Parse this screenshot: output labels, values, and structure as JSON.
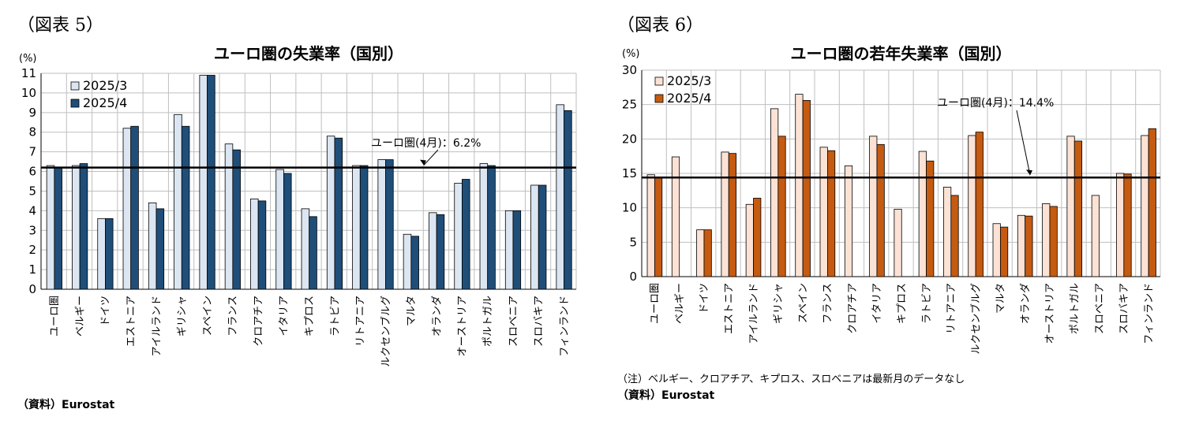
{
  "left": {
    "fig_label": "（図表 5）",
    "source": "（資料）Eurostat",
    "chart_data": {
      "type": "bar",
      "title": "ユーロ圏の失業率（国別）",
      "unit": "(%)",
      "ylim": [
        0,
        11
      ],
      "yticks": [
        "0",
        "1",
        "2",
        "3",
        "4",
        "5",
        "6",
        "7",
        "8",
        "9",
        "10",
        "11"
      ],
      "grid": true,
      "legend_position": "top-left",
      "categories": [
        "ユーロ圏",
        "ベルギー",
        "ドイツ",
        "エストニア",
        "アイルランド",
        "ギリシャ",
        "スペイン",
        "フランス",
        "クロアチア",
        "イタリア",
        "キプロス",
        "ラトビア",
        "リトアニア",
        "ルクセンブルグ",
        "マルタ",
        "オランダ",
        "オーストリア",
        "ポルトガル",
        "スロベニア",
        "スロバキア",
        "フィンランド"
      ],
      "series": [
        {
          "name": "2025/3",
          "color": "#dce6f2",
          "values": [
            6.3,
            6.3,
            3.6,
            8.2,
            4.4,
            8.9,
            10.9,
            7.4,
            4.6,
            6.1,
            4.1,
            7.8,
            6.3,
            6.6,
            2.8,
            3.9,
            5.4,
            6.4,
            4.0,
            5.3,
            9.4
          ]
        },
        {
          "name": "2025/4",
          "color": "#1f4e79",
          "values": [
            6.2,
            6.4,
            3.6,
            8.3,
            4.1,
            8.3,
            10.9,
            7.1,
            4.5,
            5.9,
            3.7,
            7.7,
            6.3,
            6.6,
            2.7,
            3.8,
            5.6,
            6.3,
            4.0,
            5.3,
            9.1
          ]
        }
      ],
      "reference_line": {
        "value": 6.2,
        "label": "ユーロ圏(4月)：6.2%"
      }
    }
  },
  "right": {
    "fig_label": "（図表 6）",
    "note": "（注）ベルギー、クロアチア、キプロス、スロベニアは最新月のデータなし",
    "source": "（資料）Eurostat",
    "chart_data": {
      "type": "bar",
      "title": "ユーロ圏の若年失業率（国別）",
      "unit": "(%)",
      "ylim": [
        0,
        30
      ],
      "yticks": [
        "0",
        "5",
        "10",
        "15",
        "20",
        "25",
        "30"
      ],
      "grid": true,
      "legend_position": "top-left",
      "categories": [
        "ユーロ圏",
        "ベルギー",
        "ドイツ",
        "エストニア",
        "アイルランド",
        "ギリシャ",
        "スペイン",
        "フランス",
        "クロアチア",
        "イタリア",
        "キプロス",
        "ラトビア",
        "リトアニア",
        "ルクセンブルグ",
        "マルタ",
        "オランダ",
        "オーストリア",
        "ポルトガル",
        "スロベニア",
        "スロバキア",
        "フィンランド"
      ],
      "series": [
        {
          "name": "2025/3",
          "color": "#fbe2d5",
          "values": [
            14.8,
            17.4,
            6.8,
            18.1,
            10.5,
            24.4,
            26.5,
            18.8,
            16.1,
            20.4,
            9.8,
            18.2,
            13.0,
            20.5,
            7.7,
            8.9,
            10.6,
            20.4,
            11.8,
            15.0,
            20.5
          ]
        },
        {
          "name": "2025/4",
          "color": "#c55a11",
          "values": [
            14.4,
            null,
            6.8,
            17.9,
            11.4,
            20.4,
            25.6,
            18.3,
            null,
            19.2,
            null,
            16.8,
            11.8,
            21.0,
            7.2,
            8.8,
            10.2,
            19.7,
            null,
            14.9,
            21.5
          ]
        }
      ],
      "reference_line": {
        "value": 14.4,
        "label": "ユーロ圏(4月)：14.4%"
      }
    }
  }
}
